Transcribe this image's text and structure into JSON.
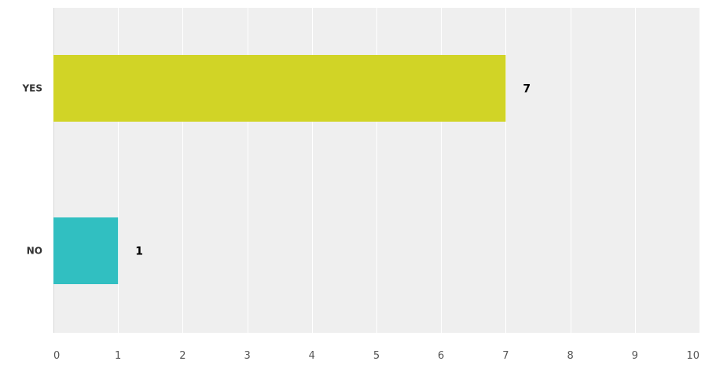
{
  "chart_data": {
    "type": "bar",
    "orientation": "horizontal",
    "categories": [
      "YES",
      "NO"
    ],
    "values": [
      7,
      1
    ],
    "value_labels": [
      "7",
      "1"
    ],
    "bar_colors": [
      "#d1d426",
      "#31bfc1"
    ],
    "xlim": [
      0,
      10
    ],
    "x_ticks": [
      "0",
      "1",
      "2",
      "3",
      "4",
      "5",
      "6",
      "7",
      "8",
      "9",
      "10"
    ],
    "grid": true,
    "plot_background": "#efefef",
    "grid_color": "#ffffff",
    "title": "",
    "xlabel": "",
    "ylabel": ""
  }
}
